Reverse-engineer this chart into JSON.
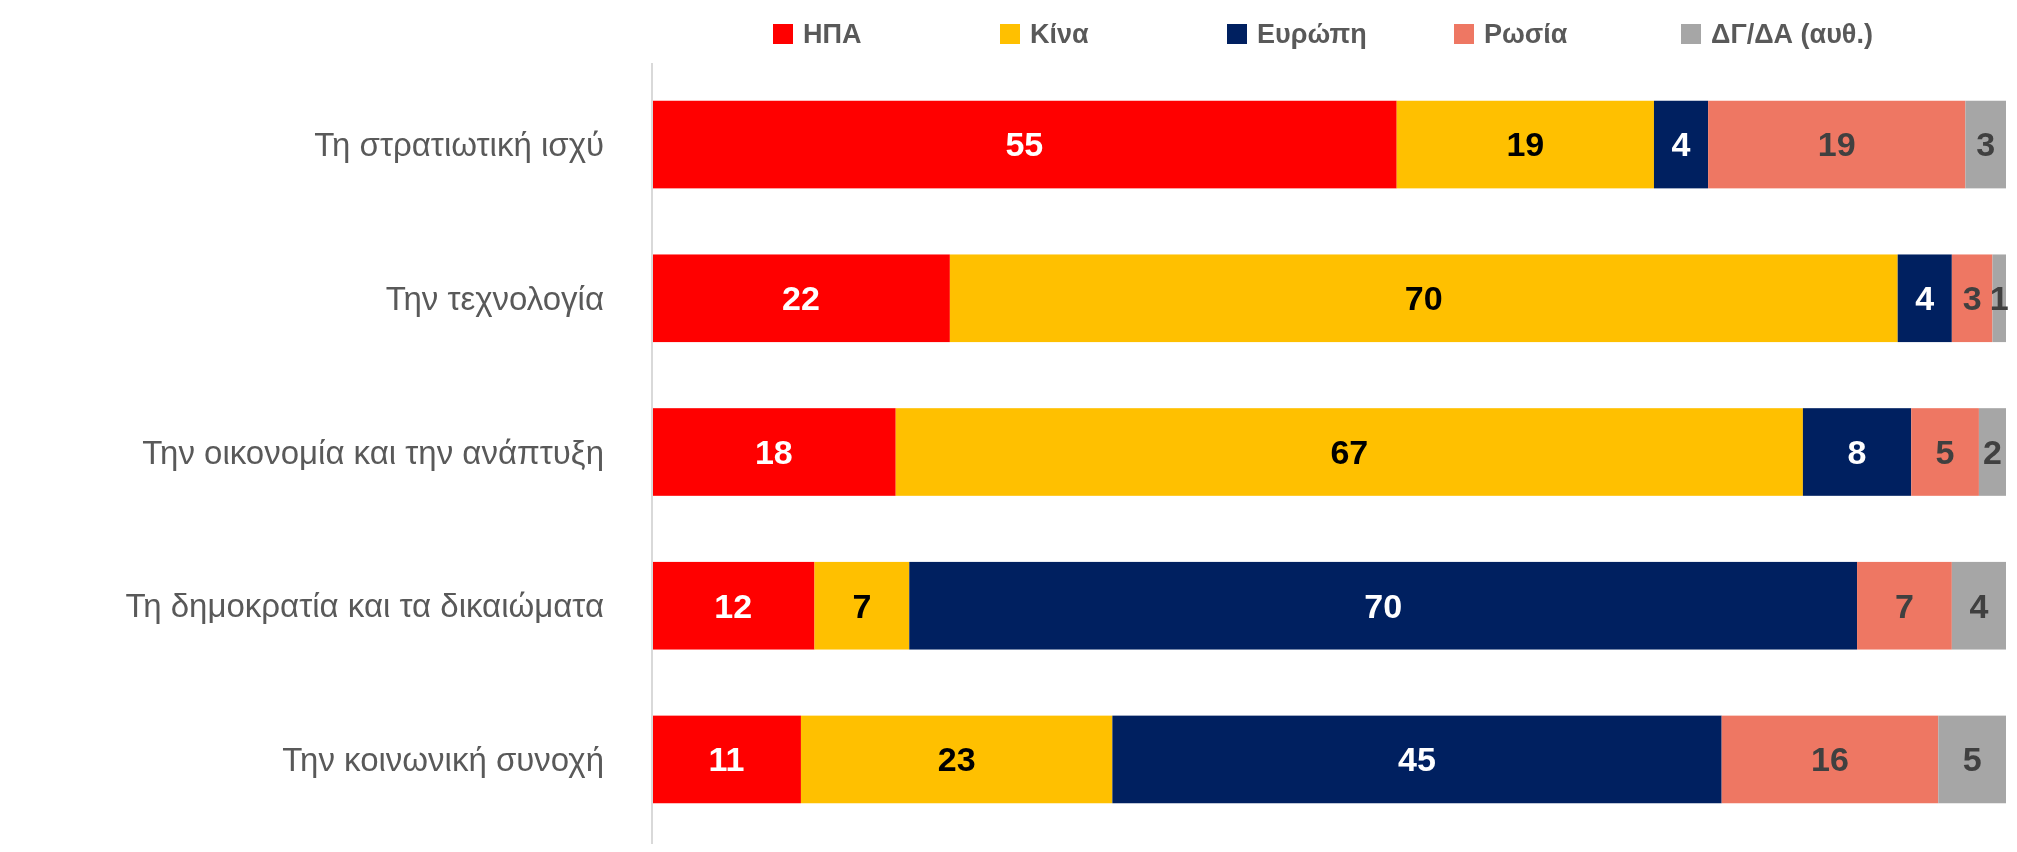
{
  "chart_data": {
    "type": "bar",
    "orientation": "horizontal",
    "stacked": true,
    "data_labels": true,
    "legend": "top",
    "categories": [
      "Τη στρατιωτική ισχύ",
      "Την τεχνολογία",
      "Την οικονομία και την ανάπτυξη",
      "Τη δημοκρατία και τα δικαιώματα",
      "Την κοινωνική συνοχή"
    ],
    "series": [
      {
        "name": "ΗΠΑ",
        "color": "#ff0000",
        "values": [
          55,
          22,
          18,
          12,
          11
        ]
      },
      {
        "name": "Κίνα",
        "color": "#ffc000",
        "values": [
          19,
          70,
          67,
          7,
          23
        ]
      },
      {
        "name": "Ευρώπη",
        "color": "#002060",
        "values": [
          4,
          4,
          8,
          70,
          45
        ]
      },
      {
        "name": "Ρωσία",
        "color": "#ee7763",
        "values": [
          19,
          3,
          5,
          7,
          16
        ]
      },
      {
        "name": "ΔΓ/ΔΑ (αυθ.)",
        "color": "#a6a6a6",
        "values": [
          3,
          1,
          2,
          4,
          5
        ]
      }
    ]
  }
}
